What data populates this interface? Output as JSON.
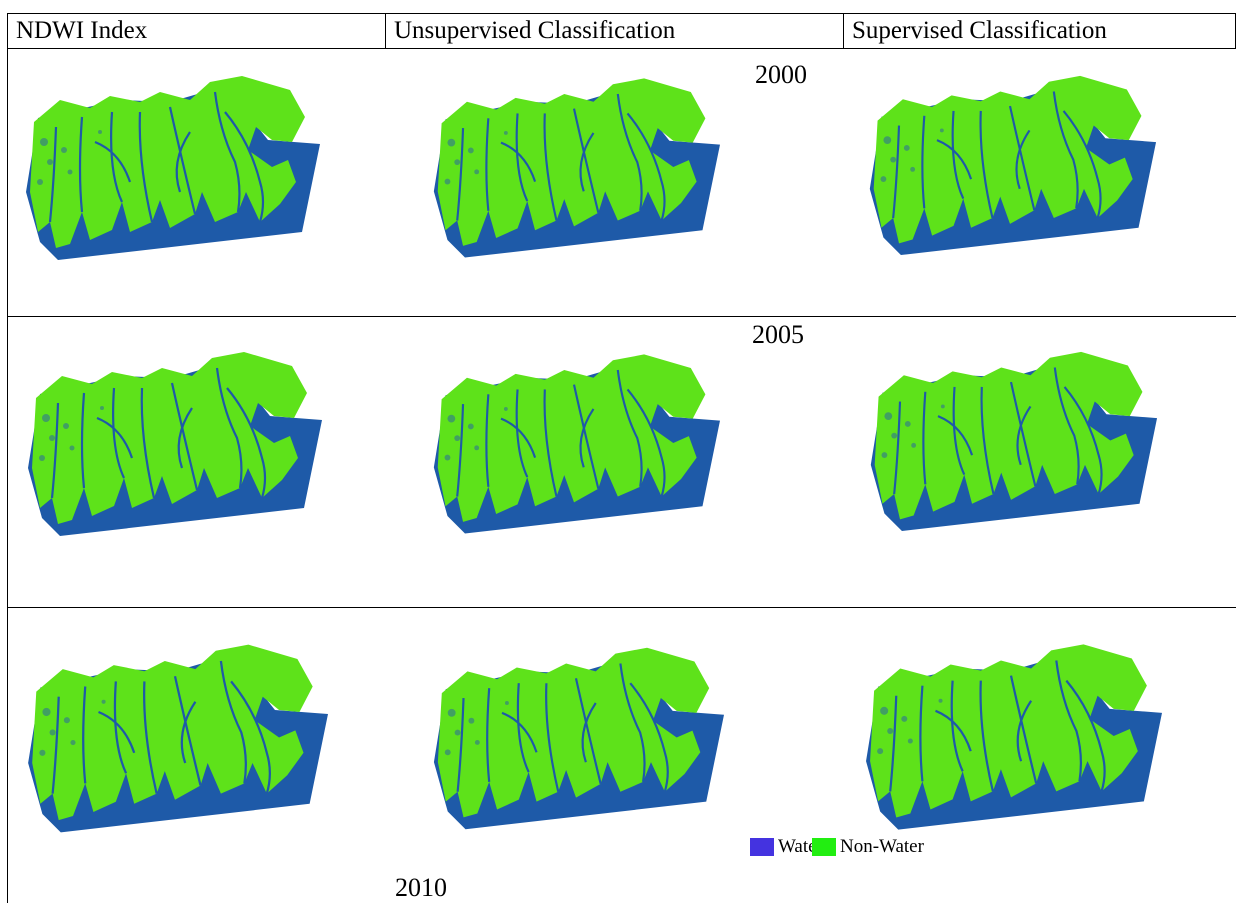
{
  "table": {
    "headers": [
      "NDWI Index",
      "Unsupervised Classification",
      "Supervised Classification"
    ],
    "years": [
      "2000",
      "2005",
      "2010"
    ]
  },
  "legend": [
    "Water",
    "Non-Water"
  ]
}
